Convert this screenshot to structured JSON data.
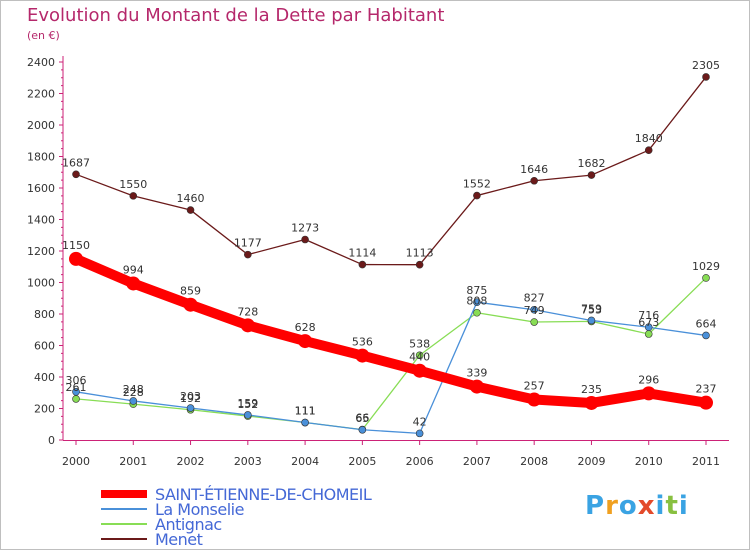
{
  "chart_data": {
    "type": "line",
    "title": "Evolution du Montant de la Dette par Habitant",
    "subtitle": "(en €)",
    "xlabel": "",
    "ylabel": "",
    "categories": [
      "2000",
      "2001",
      "2002",
      "2003",
      "2004",
      "2005",
      "2006",
      "2007",
      "2008",
      "2009",
      "2010",
      "2011"
    ],
    "ylim": [
      0,
      2400
    ],
    "yticks": [
      0,
      200,
      400,
      600,
      800,
      1000,
      1200,
      1400,
      1600,
      1800,
      2000,
      2200,
      2400
    ],
    "grid": false,
    "legend_position": "bottom-left",
    "series": [
      {
        "name": "SAINT-ÉTIENNE-DE-CHOMEIL",
        "color": "#ff0000",
        "values": [
          1150,
          994,
          859,
          728,
          628,
          536,
          440,
          339,
          257,
          235,
          296,
          237
        ],
        "labels": [
          "1150",
          "994",
          "859",
          "728",
          "628",
          "536",
          "440",
          "339",
          "257",
          "235",
          "296",
          "237"
        ]
      },
      {
        "name": "La Monselie",
        "color": "#4a90d9",
        "values": [
          306,
          248,
          203,
          159,
          111,
          65,
          42,
          875,
          827,
          759,
          716,
          664
        ],
        "labels": [
          "306",
          "248",
          "203",
          "159",
          "111",
          "65",
          "42",
          "875",
          "827",
          "759",
          "716",
          "664"
        ]
      },
      {
        "name": "Antignac",
        "color": "#88dd55",
        "values": [
          261,
          228,
          192,
          152,
          111,
          66,
          538,
          808,
          749,
          753,
          673,
          1029
        ],
        "labels": [
          "261",
          "228",
          "192",
          "152",
          "111",
          "66",
          "538",
          "808",
          "749",
          "753",
          "673",
          "1029"
        ]
      },
      {
        "name": "Menet",
        "color": "#6b1a1a",
        "values": [
          1687,
          1550,
          1460,
          1177,
          1273,
          1114,
          1113,
          1552,
          1646,
          1682,
          1840,
          2305
        ],
        "labels": [
          "1687",
          "1550",
          "1460",
          "1177",
          "1273",
          "1114",
          "1113",
          "1552",
          "1646",
          "1682",
          "1840",
          "2305"
        ]
      }
    ]
  },
  "logo": {
    "letters": [
      "P",
      "r",
      "o",
      "x",
      "i",
      "t",
      "i"
    ],
    "colors": [
      "#3aa3e3",
      "#f0a020",
      "#3aa3e3",
      "#e34a2a",
      "#3aa3e3",
      "#88c040",
      "#3aa3e3"
    ]
  }
}
